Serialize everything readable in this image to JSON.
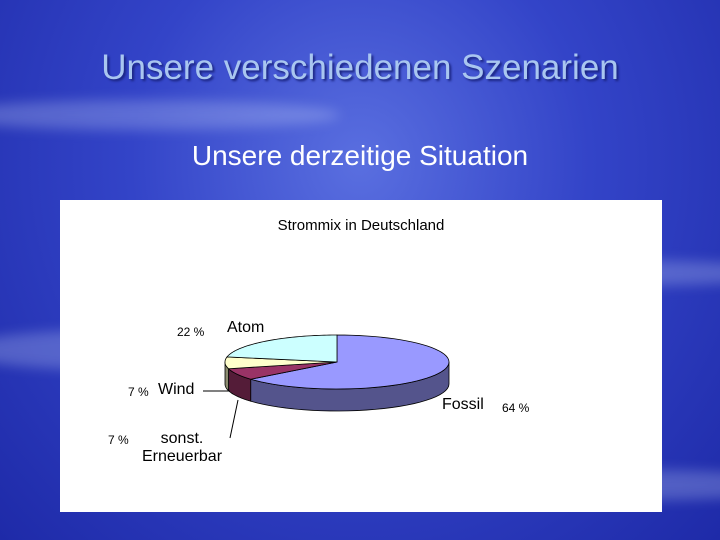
{
  "slide": {
    "title": "Unsere verschiedenen Szenarien",
    "subtitle": "Unsere derzeitige Situation"
  },
  "chart_data": {
    "type": "pie",
    "title": "Strommix in Deutschland",
    "categories": [
      "Fossil",
      "Wind",
      "sonst. Erneuerbar",
      "Atom"
    ],
    "values": [
      64,
      7,
      7,
      22
    ],
    "value_labels": [
      "64 %",
      "7 %",
      "7 %",
      "22 %"
    ],
    "colors": [
      "#9999ff",
      "#993366",
      "#ffffcc",
      "#ccffff"
    ]
  }
}
